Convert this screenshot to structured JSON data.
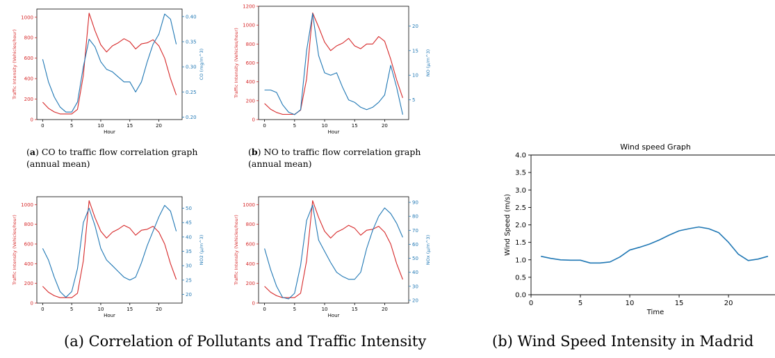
{
  "chart_data": [
    {
      "id": "co",
      "type": "line",
      "caption_letter": "a",
      "caption_text": "CO to traffic flow correlation graph",
      "caption_line2": "(annual mean)",
      "xlabel": "Hour",
      "x": [
        0,
        1,
        2,
        3,
        4,
        5,
        6,
        7,
        8,
        9,
        10,
        11,
        12,
        13,
        14,
        15,
        16,
        17,
        18,
        19,
        20,
        21,
        22,
        23
      ],
      "xticks": [
        "0",
        "5",
        "10",
        "15",
        "20"
      ],
      "xlim": [
        -1,
        24
      ],
      "left_axis": {
        "label": "Traffic Intensity (Vehicles/hour)",
        "color": "#d62728",
        "ylim": [
          0,
          1080
        ],
        "ticks": [
          "0",
          "200",
          "400",
          "600",
          "800",
          "1000"
        ]
      },
      "right_axis": {
        "label": "CO (mg/m^3)",
        "color": "#1f77b4",
        "ylim": [
          0.195,
          0.415
        ],
        "ticks": [
          "0.20",
          "0.25",
          "0.30",
          "0.35",
          "0.40"
        ]
      },
      "series": [
        {
          "axis": "left",
          "color": "#d62728",
          "values": [
            170,
            110,
            75,
            55,
            55,
            55,
            100,
            430,
            1040,
            870,
            730,
            660,
            720,
            750,
            790,
            760,
            690,
            740,
            750,
            780,
            720,
            600,
            400,
            240
          ]
        },
        {
          "axis": "right",
          "color": "#1f77b4",
          "values": [
            0.315,
            0.27,
            0.24,
            0.22,
            0.21,
            0.21,
            0.23,
            0.3,
            0.355,
            0.34,
            0.31,
            0.295,
            0.29,
            0.28,
            0.27,
            0.27,
            0.25,
            0.27,
            0.31,
            0.345,
            0.365,
            0.405,
            0.395,
            0.345
          ]
        }
      ]
    },
    {
      "id": "no",
      "type": "line",
      "caption_letter": "b",
      "caption_text": "NO to traffic flow correlation graph",
      "caption_line2": "(annual mean)",
      "xlabel": "Hour",
      "x": [
        0,
        1,
        2,
        3,
        4,
        5,
        6,
        7,
        8,
        9,
        10,
        11,
        12,
        13,
        14,
        15,
        16,
        17,
        18,
        19,
        20,
        21,
        22,
        23
      ],
      "xticks": [
        "0",
        "5",
        "10",
        "15",
        "20"
      ],
      "xlim": [
        -1,
        24
      ],
      "left_axis": {
        "label": "Traffic Intensity (Vehicles/hour)",
        "color": "#d62728",
        "ylim": [
          0,
          1200
        ],
        "ticks": [
          "0",
          "200",
          "400",
          "600",
          "800",
          "1000",
          "1200"
        ]
      },
      "right_axis": {
        "label": "NO (µ/m^3)",
        "color": "#1f77b4",
        "ylim": [
          1,
          24
        ],
        "ticks": [
          "5",
          "10",
          "15",
          "20"
        ]
      },
      "series": [
        {
          "axis": "left",
          "color": "#d62728",
          "values": [
            170,
            110,
            75,
            55,
            55,
            55,
            100,
            430,
            1130,
            980,
            820,
            730,
            780,
            810,
            860,
            780,
            750,
            800,
            800,
            880,
            830,
            640,
            420,
            230
          ]
        },
        {
          "axis": "right",
          "color": "#1f77b4",
          "values": [
            7,
            7,
            6.5,
            4,
            2.5,
            2,
            3,
            15,
            22.5,
            14,
            10.5,
            10,
            10.5,
            7.5,
            5,
            4.5,
            3.5,
            3,
            3.5,
            4.5,
            6,
            12,
            7.5,
            2
          ]
        }
      ]
    },
    {
      "id": "no2",
      "type": "line",
      "xlabel": "Hour",
      "x": [
        0,
        1,
        2,
        3,
        4,
        5,
        6,
        7,
        8,
        9,
        10,
        11,
        12,
        13,
        14,
        15,
        16,
        17,
        18,
        19,
        20,
        21,
        22,
        23
      ],
      "xticks": [
        "0",
        "5",
        "10",
        "15",
        "20"
      ],
      "xlim": [
        -1,
        24
      ],
      "left_axis": {
        "label": "Traffic Intensity (Vehicles/hour)",
        "color": "#d62728",
        "ylim": [
          0,
          1080
        ],
        "ticks": [
          "0",
          "200",
          "400",
          "600",
          "800",
          "1000"
        ]
      },
      "right_axis": {
        "label": "NO2 (µ/m^3)",
        "color": "#1f77b4",
        "ylim": [
          17,
          54
        ],
        "ticks": [
          "20",
          "25",
          "30",
          "35",
          "40",
          "45",
          "50"
        ]
      },
      "series": [
        {
          "axis": "left",
          "color": "#d62728",
          "values": [
            170,
            110,
            75,
            55,
            55,
            55,
            100,
            430,
            1040,
            870,
            730,
            660,
            720,
            750,
            790,
            760,
            690,
            740,
            750,
            780,
            720,
            600,
            400,
            240
          ]
        },
        {
          "axis": "right",
          "color": "#1f77b4",
          "values": [
            36,
            32,
            26,
            21,
            19,
            21,
            29,
            45,
            50,
            44,
            36,
            32,
            30,
            28,
            26,
            25,
            26,
            31,
            37,
            42,
            47,
            51,
            49,
            42
          ]
        }
      ]
    },
    {
      "id": "nox",
      "type": "line",
      "xlabel": "Hour",
      "x": [
        0,
        1,
        2,
        3,
        4,
        5,
        6,
        7,
        8,
        9,
        10,
        11,
        12,
        13,
        14,
        15,
        16,
        17,
        18,
        19,
        20,
        21,
        22,
        23
      ],
      "xticks": [
        "0",
        "5",
        "10",
        "15",
        "20"
      ],
      "xlim": [
        -1,
        24
      ],
      "left_axis": {
        "label": "Traffic Intensity (Vehicles/hour)",
        "color": "#d62728",
        "ylim": [
          0,
          1080
        ],
        "ticks": [
          "0",
          "200",
          "400",
          "600",
          "800",
          "1000"
        ]
      },
      "right_axis": {
        "label": "NOx (µ/m^3)",
        "color": "#1f77b4",
        "ylim": [
          18,
          94
        ],
        "ticks": [
          "20",
          "30",
          "40",
          "50",
          "60",
          "70",
          "80",
          "90"
        ]
      },
      "series": [
        {
          "axis": "left",
          "color": "#d62728",
          "values": [
            170,
            110,
            75,
            55,
            55,
            55,
            100,
            430,
            1040,
            870,
            730,
            660,
            720,
            750,
            790,
            760,
            690,
            740,
            750,
            780,
            720,
            600,
            400,
            240
          ]
        },
        {
          "axis": "right",
          "color": "#1f77b4",
          "values": [
            57,
            42,
            30,
            22,
            21,
            25,
            45,
            77,
            88,
            63,
            55,
            47,
            40,
            37,
            35,
            35,
            40,
            57,
            70,
            80,
            86,
            82,
            75,
            65
          ]
        }
      ]
    },
    {
      "id": "wind",
      "type": "line",
      "title": "Wind speed Graph",
      "xlabel": "Time",
      "ylabel": "Wind Speed (m/s)",
      "x": [
        1,
        2,
        3,
        4,
        5,
        6,
        7,
        8,
        9,
        10,
        11,
        12,
        13,
        14,
        15,
        16,
        17,
        18,
        19,
        20,
        21,
        22,
        23,
        24
      ],
      "xticks": [
        "0",
        "5",
        "10",
        "15",
        "20"
      ],
      "xlim": [
        0,
        25
      ],
      "ylim": [
        0,
        4.0
      ],
      "yticks": [
        "0.0",
        "0.5",
        "1.0",
        "1.5",
        "2.0",
        "2.5",
        "3.0",
        "3.5",
        "4.0"
      ],
      "series": [
        {
          "color": "#1f77b4",
          "values": [
            1.1,
            1.04,
            1.0,
            0.99,
            0.99,
            0.91,
            0.91,
            0.94,
            1.08,
            1.28,
            1.36,
            1.45,
            1.57,
            1.71,
            1.83,
            1.89,
            1.94,
            1.89,
            1.78,
            1.5,
            1.16,
            0.98,
            1.02,
            1.1
          ]
        }
      ]
    }
  ],
  "captions": {
    "left_main": "(a) Correlation of Pollutants and Traffic Intensity",
    "right_main": "(b) Wind Speed Intensity in Madrid"
  }
}
